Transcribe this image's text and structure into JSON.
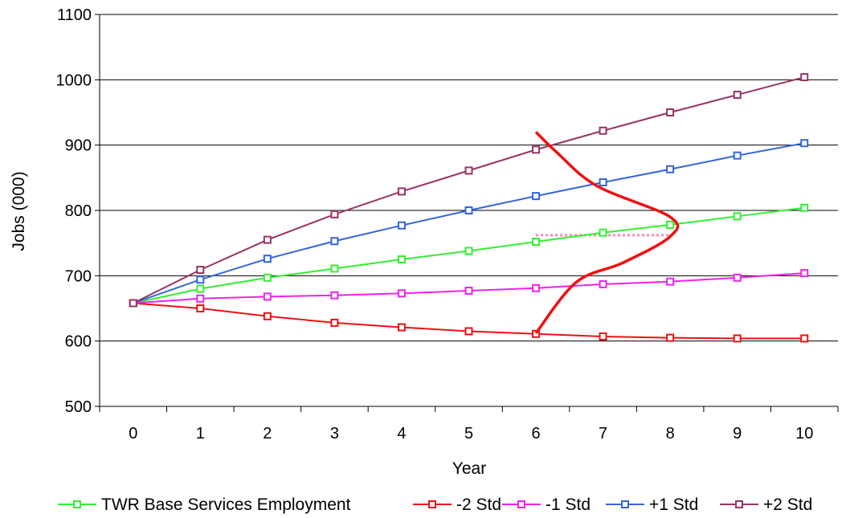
{
  "chart_data": {
    "type": "line",
    "title": "",
    "xlabel": "Year",
    "ylabel": "Jobs (000)",
    "x": [
      0,
      1,
      2,
      3,
      4,
      5,
      6,
      7,
      8,
      9,
      10
    ],
    "ylim": [
      500,
      1100
    ],
    "yticks": [
      500,
      600,
      700,
      800,
      900,
      1000,
      1100
    ],
    "grid": "horizontal",
    "legend_position": "bottom",
    "series": [
      {
        "name": "TWR Base Services Employment",
        "color": "#33ee33",
        "values": [
          658,
          680,
          697,
          711,
          725,
          738,
          752,
          766,
          778,
          791,
          804
        ]
      },
      {
        "name": "-2 Std",
        "color": "#ee1111",
        "values": [
          658,
          650,
          638,
          628,
          621,
          615,
          611,
          607,
          605,
          604,
          604
        ]
      },
      {
        "name": "-1 Std",
        "color": "#ee22ee",
        "values": [
          658,
          665,
          668,
          670,
          673,
          677,
          681,
          687,
          691,
          697,
          704
        ]
      },
      {
        "name": "+1 Std",
        "color": "#3366dd",
        "values": [
          658,
          694,
          726,
          753,
          777,
          800,
          822,
          843,
          863,
          884,
          903
        ]
      },
      {
        "name": "+2 Std",
        "color": "#993366",
        "values": [
          658,
          709,
          755,
          794,
          829,
          861,
          893,
          922,
          950,
          977,
          1004
        ]
      }
    ],
    "annotations": [
      {
        "type": "distribution-curve",
        "color": "#ee1111",
        "points": [
          [
            6,
            920
          ],
          [
            6.3,
            890
          ],
          [
            6.9,
            838
          ],
          [
            8.0,
            790
          ],
          [
            8.0,
            760
          ],
          [
            7.3,
            720
          ],
          [
            6.6,
            690
          ],
          [
            6.0,
            612
          ]
        ]
      },
      {
        "type": "dotted-line",
        "color": "#ff88aa",
        "from": [
          6,
          762
        ],
        "to": [
          8,
          762
        ]
      }
    ]
  }
}
